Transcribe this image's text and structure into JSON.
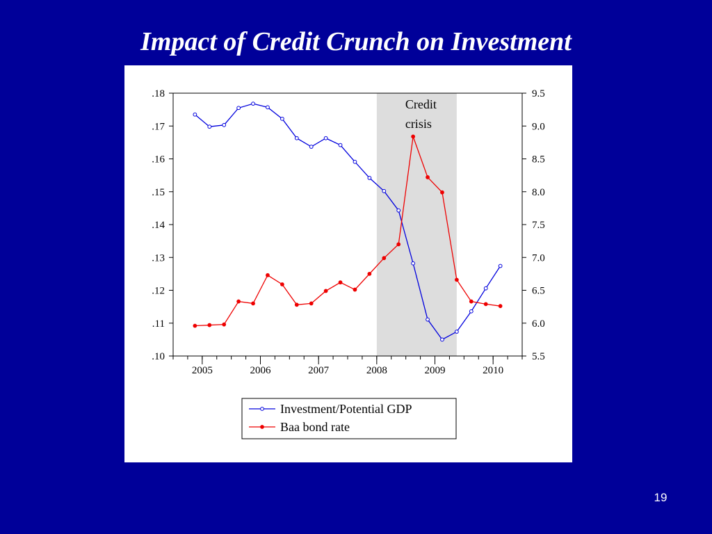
{
  "slide": {
    "title": "Impact of Credit Crunch on Investment",
    "page_number": "19"
  },
  "chart_data": {
    "type": "line",
    "title": "",
    "xlabel": "",
    "ylabel": "",
    "x_tick_labels": [
      "2005",
      "2006",
      "2007",
      "2008",
      "2009",
      "2010"
    ],
    "left_axis": {
      "ylim": [
        0.1,
        0.18
      ],
      "ticks": [
        0.1,
        0.11,
        0.12,
        0.13,
        0.14,
        0.15,
        0.16,
        0.17,
        0.18
      ],
      "tick_labels": [
        ".10",
        ".11",
        ".12",
        ".13",
        ".14",
        ".15",
        ".16",
        ".17",
        ".18"
      ]
    },
    "right_axis": {
      "ylim": [
        5.5,
        9.5
      ],
      "ticks": [
        5.5,
        6.0,
        6.5,
        7.0,
        7.5,
        8.0,
        8.5,
        9.0,
        9.5
      ],
      "tick_labels": [
        "5.5",
        "6.0",
        "6.5",
        "7.0",
        "7.5",
        "8.0",
        "8.5",
        "9.0",
        "9.5"
      ]
    },
    "xlim": [
      2004.5,
      2010.5
    ],
    "shaded_region": {
      "x": [
        2008.0,
        2009.375
      ],
      "label_lines": [
        "Credit",
        "crisis"
      ],
      "color": "#dddddd"
    },
    "grid": false,
    "legend_position": "bottom-center",
    "series": [
      {
        "name": "Investment/Potential GDP",
        "axis": "left",
        "color": "#0000dd",
        "marker": "open-circle",
        "x": [
          2004.875,
          2005.125,
          2005.375,
          2005.625,
          2005.875,
          2006.125,
          2006.375,
          2006.625,
          2006.875,
          2007.125,
          2007.375,
          2007.625,
          2007.875,
          2008.125,
          2008.375,
          2008.625,
          2008.875,
          2009.125,
          2009.375,
          2009.625,
          2009.875,
          2010.125,
          2010.375
        ],
        "values": [
          0.1735,
          0.1698,
          0.1703,
          0.1755,
          0.1768,
          0.1757,
          0.1722,
          0.1663,
          0.1637,
          0.1663,
          0.1642,
          0.1591,
          0.1542,
          0.1502,
          0.1443,
          0.1282,
          0.1111,
          0.105,
          0.1074,
          0.1136,
          0.1206,
          0.1274,
          null
        ]
      },
      {
        "name": "Baa bond rate",
        "axis": "right",
        "color": "#ee0000",
        "marker": "filled-circle",
        "x": [
          2004.875,
          2005.125,
          2005.375,
          2005.625,
          2005.875,
          2006.125,
          2006.375,
          2006.625,
          2006.875,
          2007.125,
          2007.375,
          2007.625,
          2007.875,
          2008.125,
          2008.375,
          2008.625,
          2008.875,
          2009.125,
          2009.375,
          2009.625,
          2009.875,
          2010.125,
          2010.375
        ],
        "values": [
          5.96,
          5.97,
          5.98,
          6.33,
          6.3,
          6.73,
          6.59,
          6.28,
          6.3,
          6.49,
          6.62,
          6.51,
          6.75,
          6.99,
          7.2,
          8.84,
          8.22,
          7.99,
          6.66,
          6.33,
          6.29,
          6.26,
          null
        ]
      }
    ]
  }
}
